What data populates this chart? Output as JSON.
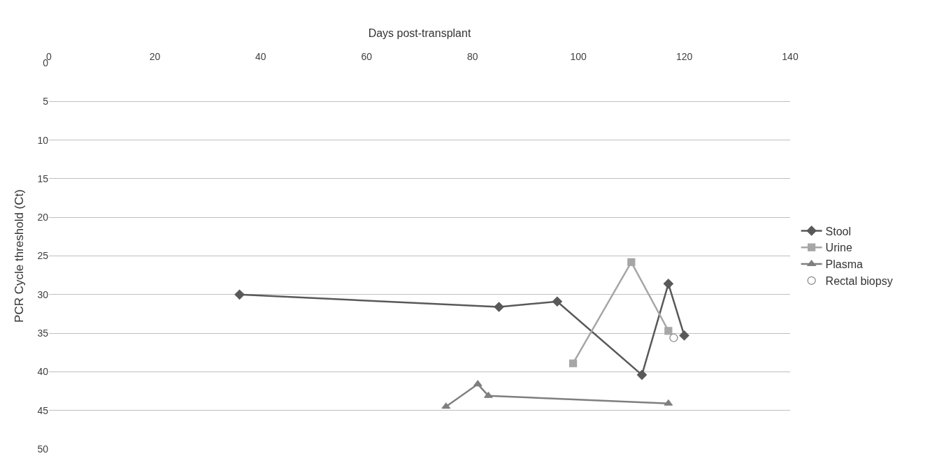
{
  "chart_data": {
    "type": "line",
    "xlabel": "Days post-transplant",
    "ylabel": "PCR Cycle threshold (Ct)",
    "xlim": [
      0,
      140
    ],
    "xticks": [
      0,
      20,
      40,
      60,
      80,
      100,
      120,
      140
    ],
    "ylim": [
      50,
      0
    ],
    "yticks": [
      0,
      5,
      10,
      15,
      20,
      25,
      30,
      35,
      40,
      45,
      50
    ],
    "grid": "y",
    "legend": "right",
    "series": [
      {
        "name": "Stool",
        "color": "#595959",
        "marker": "diamond",
        "x": [
          36,
          85,
          96,
          112,
          117,
          120
        ],
        "values": [
          30.0,
          31.6,
          30.9,
          40.4,
          28.6,
          35.3
        ]
      },
      {
        "name": "Urine",
        "color": "#a6a6a6",
        "marker": "square",
        "x": [
          99,
          110,
          117
        ],
        "values": [
          38.9,
          25.8,
          34.7
        ]
      },
      {
        "name": "Plasma",
        "color": "#7f7f7f",
        "marker": "triangle",
        "x": [
          75,
          81,
          83,
          117
        ],
        "values": [
          44.5,
          41.6,
          43.1,
          44.1
        ]
      },
      {
        "name": "Rectal biopsy",
        "type": "scatter",
        "color": "#7f7f7f",
        "marker": "circle",
        "x": [
          118
        ],
        "values": [
          35.6
        ]
      }
    ]
  }
}
